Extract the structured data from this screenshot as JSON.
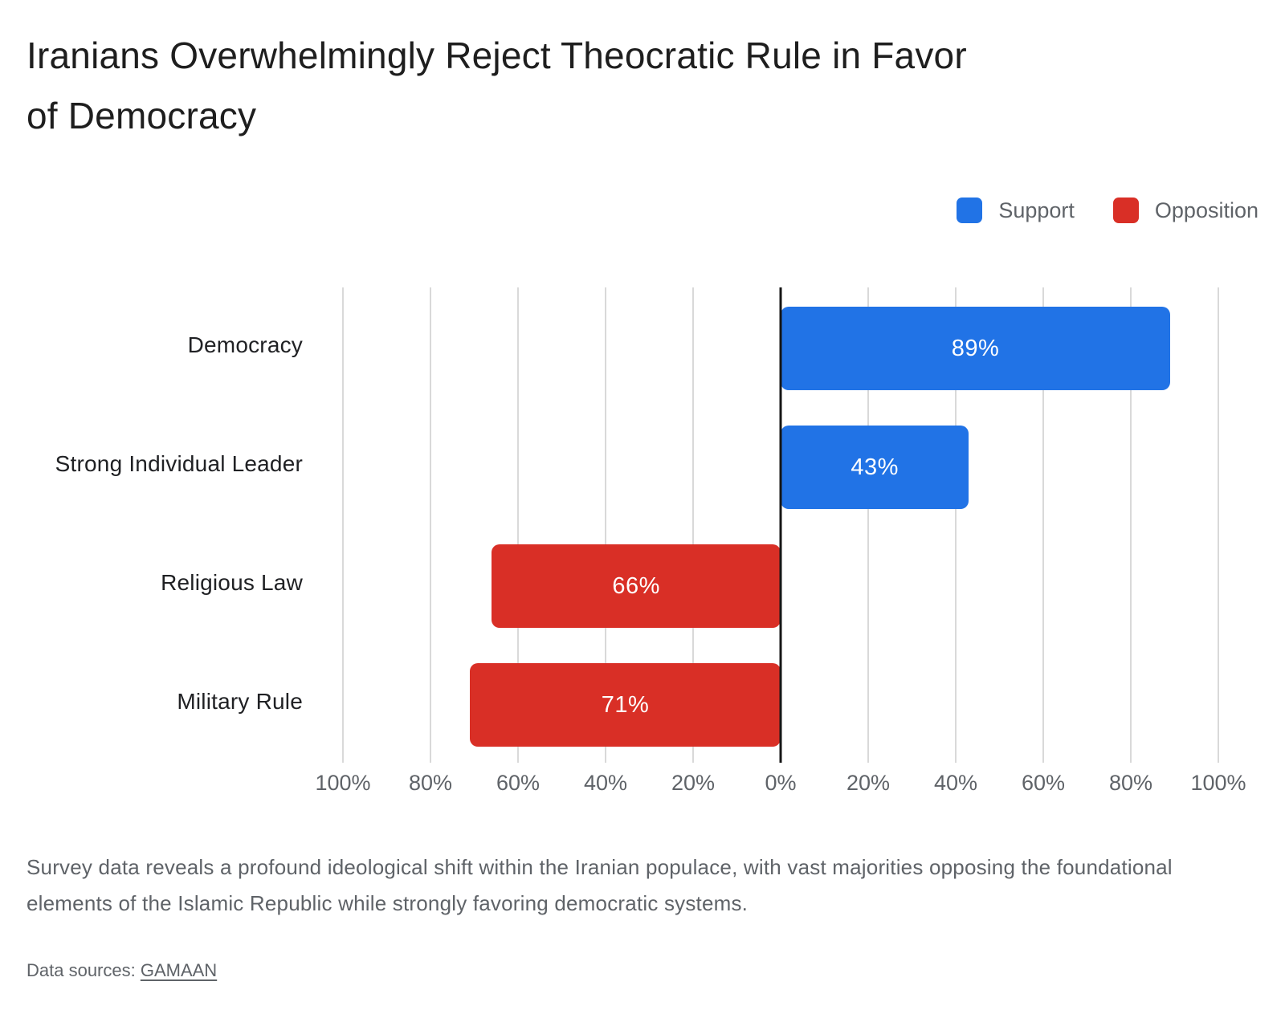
{
  "title": {
    "full": "Iranians Overwhelmingly Reject Theocratic Rule in Favor of Democracy",
    "lines": [
      "Iranians Overwhelmingly Reject Theocratic Rule in Favor",
      "of Democracy"
    ]
  },
  "legend": {
    "position": "top-right",
    "items": [
      {
        "label": "Support",
        "color": "#2173e6"
      },
      {
        "label": "Opposition",
        "color": "#d92f26"
      }
    ]
  },
  "chart_data": {
    "type": "bar",
    "subtype": "diverging-horizontal",
    "title": "Iranians Overwhelmingly Reject Theocratic Rule in Favor of Democracy",
    "categories": [
      "Democracy",
      "Strong Individual Leader",
      "Religious Law",
      "Military Rule"
    ],
    "series": [
      {
        "name": "Support",
        "color": "#2173e6",
        "direction": "right"
      },
      {
        "name": "Opposition",
        "color": "#d92f26",
        "direction": "left"
      }
    ],
    "bars": [
      {
        "category": "Democracy",
        "series": "Support",
        "value": 89,
        "label": "89%",
        "direction": "right"
      },
      {
        "category": "Strong Individual Leader",
        "series": "Support",
        "value": 43,
        "label": "43%",
        "direction": "right"
      },
      {
        "category": "Religious Law",
        "series": "Opposition",
        "value": 66,
        "label": "66%",
        "direction": "left"
      },
      {
        "category": "Military Rule",
        "series": "Opposition",
        "value": 71,
        "label": "71%",
        "direction": "left"
      }
    ],
    "xlabel": "",
    "ylabel": "",
    "axis": {
      "min": -100,
      "max": 100,
      "step": 20,
      "tick_labels": [
        "100%",
        "80%",
        "60%",
        "40%",
        "20%",
        "0%",
        "20%",
        "40%",
        "60%",
        "80%",
        "100%"
      ]
    },
    "grid": true,
    "zero_axis": true,
    "legend_position": "top-right"
  },
  "caption": {
    "full": "Survey data reveals a profound ideological shift within the Iranian populace, with vast majorities opposing the foundational elements of the Islamic Republic while strongly favoring democratic systems.",
    "lines": [
      "Survey data reveals a profound ideological shift within the Iranian populace, with vast majorities opposing the",
      "foundational elements of the Islamic Republic while strongly favoring democratic systems."
    ]
  },
  "source": {
    "prefix": "Data sources: ",
    "link_label": "GAMAAN"
  },
  "colors": {
    "support": "#2173e6",
    "opposition": "#d92f26",
    "title_text": "#1e1e1e",
    "category_text": "#202124",
    "muted_text": "#5f6368",
    "bar_value_text": "#ffffff",
    "gridline": "#d9d9d9",
    "zero_axis": "#161616",
    "background": "#ffffff"
  }
}
